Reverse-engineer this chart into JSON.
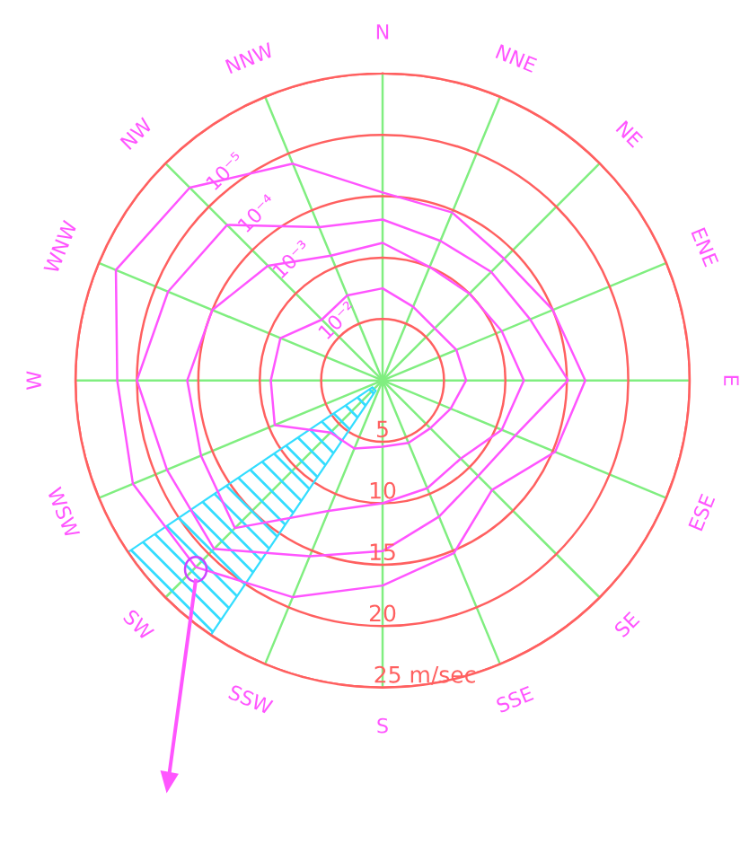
{
  "chart_data": {
    "type": "radar",
    "categories": [
      "N",
      "NNE",
      "NE",
      "ENE",
      "E",
      "ESE",
      "SE",
      "SSE",
      "S",
      "SSW",
      "SW",
      "WSW",
      "W",
      "WNW",
      "NW",
      "NNW"
    ],
    "series": [
      {
        "name": "10⁻²",
        "color": "#ff55ff",
        "values": [
          7.5,
          6.5,
          6,
          6.5,
          6.8,
          6,
          5.5,
          5.5,
          5.4,
          6,
          6,
          9.5,
          9.1,
          9,
          7,
          7.5
        ]
      },
      {
        "name": "10⁻³",
        "color": "#ff55ff",
        "values": [
          11.2,
          10,
          10,
          10.5,
          11.5,
          10.5,
          9,
          9.5,
          10,
          11.5,
          17,
          16,
          15.9,
          15,
          13.2,
          11
        ]
      },
      {
        "name": "10⁻⁴",
        "color": "#ff55ff",
        "values": [
          13.1,
          12.3,
          12.5,
          13,
          15.1,
          11.7,
          11,
          12,
          13.9,
          15.5,
          19.4,
          19,
          20,
          18.9,
          17.9,
          13.5
        ]
      },
      {
        "name": "10⁻⁵",
        "color": "#ff55ff",
        "values": [
          15.3,
          14.8,
          14,
          15,
          16.5,
          15.2,
          12.6,
          15.2,
          16.7,
          19.1,
          21.5,
          22,
          21.6,
          23.5,
          22.2,
          19.1
        ]
      }
    ],
    "ylim": [
      0,
      25
    ],
    "yticks": [
      5,
      10,
      15,
      20,
      {
        "value": 25,
        "label": "25 m/sec"
      }
    ],
    "grid": true
  }
}
